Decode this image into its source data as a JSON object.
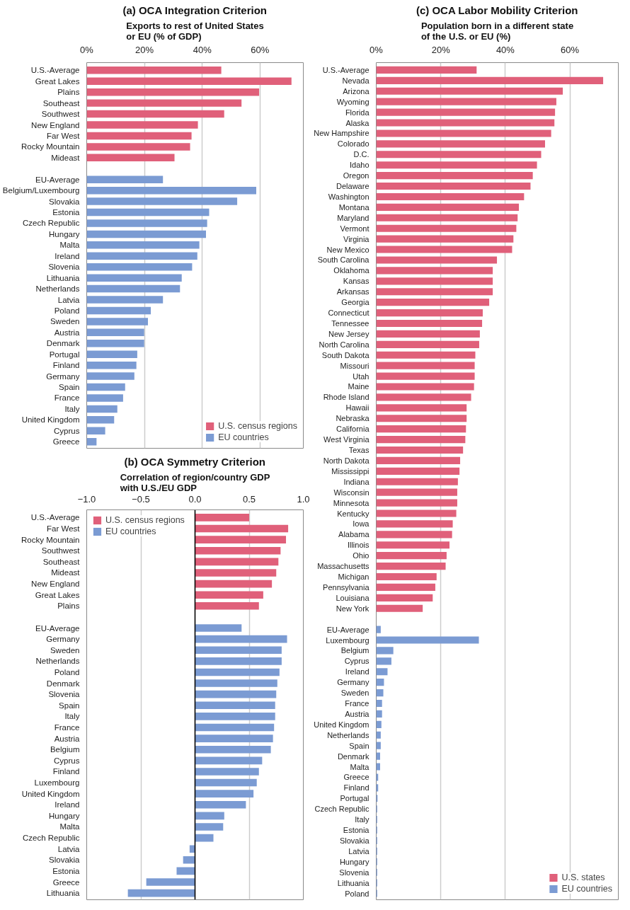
{
  "chart_data": [
    {
      "type": "bar",
      "orientation": "horizontal",
      "title": "(a) OCA Integration Criterion",
      "subtitle": "Exports to rest of United States\nor EU (% of GDP)",
      "categories": [
        "U.S.-Average",
        "Great Lakes",
        "Plains",
        "Southeast",
        "Southwest",
        "New England",
        "Far West",
        "Rocky Mountain",
        "Mideast",
        null,
        "EU-Average",
        "Belgium/Luxembourg",
        "Slovakia",
        "Estonia",
        "Czech Republic",
        "Hungary",
        "Malta",
        "Ireland",
        "Slovenia",
        "Lithuania",
        "Netherlands",
        "Latvia",
        "Poland",
        "Sweden",
        "Austria",
        "Denmark",
        "Portugal",
        "Finland",
        "Germany",
        "Spain",
        "France",
        "Italy",
        "United Kingdom",
        "Cyprus",
        "Greece"
      ],
      "series": [
        {
          "name": "U.S. census regions",
          "color": "#e0607a",
          "values": [
            46.6,
            70.9,
            59.7,
            53.6,
            47.6,
            38.5,
            36.3,
            35.8,
            30.4,
            null,
            null,
            null,
            null,
            null,
            null,
            null,
            null,
            null,
            null,
            null,
            null,
            null,
            null,
            null,
            null,
            null,
            null,
            null,
            null,
            null,
            null,
            null,
            null,
            null,
            null
          ]
        },
        {
          "name": "EU countries",
          "color": "#7b9bd3",
          "values": [
            null,
            null,
            null,
            null,
            null,
            null,
            null,
            null,
            null,
            null,
            26.4,
            58.7,
            52.1,
            42.4,
            41.7,
            41.3,
            39.0,
            38.3,
            36.5,
            32.9,
            32.3,
            26.4,
            22.2,
            21.2,
            19.9,
            19.9,
            17.5,
            17.2,
            16.5,
            13.3,
            12.6,
            10.6,
            9.5,
            6.4,
            3.4
          ]
        }
      ],
      "xlim": [
        0,
        75
      ],
      "xticks": [
        {
          "value": 0,
          "label": "0%"
        },
        {
          "value": 20,
          "label": "20%"
        },
        {
          "value": 40,
          "label": "40%"
        },
        {
          "value": 60,
          "label": "60%"
        }
      ],
      "grid": "x",
      "legend": "bottom right"
    },
    {
      "type": "bar",
      "orientation": "horizontal",
      "title": "(b) OCA Symmetry Criterion",
      "subtitle": "Correlation of region/country GDP\nwith U.S./EU GDP",
      "categories": [
        "U.S.-Average",
        "Far West",
        "Rocky Mountain",
        "Southwest",
        "Southeast",
        "Mideast",
        "New England",
        "Great Lakes",
        "Plains",
        null,
        "EU-Average",
        "Germany",
        "Sweden",
        "Netherlands",
        "Poland",
        "Denmark",
        "Slovenia",
        "Spain",
        "Italy",
        "France",
        "Austria",
        "Belgium",
        "Cyprus",
        "Finland",
        "Luxembourg",
        "United Kingdom",
        "Ireland",
        "Hungary",
        "Malta",
        "Czech Republic",
        "Latvia",
        "Slovakia",
        "Estonia",
        "Greece",
        "Lithuania"
      ],
      "series": [
        {
          "name": "U.S. census regions",
          "color": "#e0607a",
          "values": [
            0.5,
            0.86,
            0.84,
            0.79,
            0.77,
            0.75,
            0.71,
            0.63,
            0.59,
            null,
            null,
            null,
            null,
            null,
            null,
            null,
            null,
            null,
            null,
            null,
            null,
            null,
            null,
            null,
            null,
            null,
            null,
            null,
            null,
            null,
            null,
            null,
            null,
            null,
            null
          ]
        },
        {
          "name": "EU countries",
          "color": "#7b9bd3",
          "values": [
            null,
            null,
            null,
            null,
            null,
            null,
            null,
            null,
            null,
            null,
            0.43,
            0.85,
            0.8,
            0.8,
            0.78,
            0.76,
            0.75,
            0.74,
            0.74,
            0.73,
            0.72,
            0.7,
            0.62,
            0.59,
            0.57,
            0.54,
            0.47,
            0.27,
            0.26,
            0.17,
            -0.05,
            -0.11,
            -0.17,
            -0.45,
            -0.62
          ]
        }
      ],
      "xlim": [
        -1,
        1
      ],
      "xticks": [
        {
          "value": -1,
          "label": "−1.0"
        },
        {
          "value": -0.5,
          "label": "−0.5"
        },
        {
          "value": 0,
          "label": "0.0"
        },
        {
          "value": 0.5,
          "label": "0.5"
        },
        {
          "value": 1,
          "label": "1.0"
        }
      ],
      "ref_lines": [
        {
          "axis": "x",
          "value": 0,
          "color": "#000000"
        }
      ],
      "grid": "x",
      "legend": "top left"
    },
    {
      "type": "bar",
      "orientation": "horizontal",
      "title": "(c) OCA Labor Mobility Criterion",
      "subtitle": "Population born in a different state\nof the U.S. or EU (%)",
      "categories": [
        "U.S.-Average",
        "Nevada",
        "Arizona",
        "Wyoming",
        "Florida",
        "Alaska",
        "New Hampshire",
        "Colorado",
        "D.C.",
        "Idaho",
        "Oregon",
        "Delaware",
        "Washington",
        "Montana",
        "Maryland",
        "Vermont",
        "Virginia",
        "New Mexico",
        "South Carolina",
        "Oklahoma",
        "Kansas",
        "Arkansas",
        "Georgia",
        "Connecticut",
        "Tennessee",
        "New Jersey",
        "North Carolina",
        "South Dakota",
        "Missouri",
        "Utah",
        "Maine",
        "Rhode Island",
        "Hawaii",
        "Nebraska",
        "California",
        "West Virginia",
        "Texas",
        "North Dakota",
        "Mississippi",
        "Indiana",
        "Wisconsin",
        "Minnesota",
        "Kentucky",
        "Iowa",
        "Alabama",
        "Illinois",
        "Ohio",
        "Massachusetts",
        "Michigan",
        "Pennsylvania",
        "Louisiana",
        "New York",
        null,
        "EU-Average",
        "Luxembourg",
        "Belgium",
        "Cyprus",
        "Ireland",
        "Germany",
        "Sweden",
        "France",
        "Austria",
        "United Kingdom",
        "Netherlands",
        "Spain",
        "Denmark",
        "Malta",
        "Greece",
        "Finland",
        "Portugal",
        "Czech Republic",
        "Italy",
        "Estonia",
        "Slovakia",
        "Latvia",
        "Hungary",
        "Slovenia",
        "Lithuania",
        "Poland"
      ],
      "series": [
        {
          "name": "U.S. states",
          "color": "#e0607a",
          "values": [
            31.1,
            70.3,
            57.8,
            55.8,
            55.4,
            55.2,
            54.2,
            52.3,
            51.1,
            49.8,
            48.5,
            47.8,
            45.8,
            44.2,
            43.8,
            43.4,
            42.5,
            42.1,
            37.4,
            36.1,
            36.1,
            36.1,
            35.0,
            33.0,
            32.8,
            32.1,
            31.9,
            30.7,
            30.5,
            30.5,
            30.3,
            29.4,
            28.0,
            28.0,
            27.8,
            27.6,
            26.9,
            26.0,
            25.8,
            25.3,
            25.1,
            25.1,
            24.8,
            23.7,
            23.5,
            22.7,
            21.8,
            21.5,
            18.7,
            18.3,
            17.5,
            14.4,
            null,
            null,
            null,
            null,
            null,
            null,
            null,
            null,
            null,
            null,
            null,
            null,
            null,
            null,
            null,
            null,
            null,
            null,
            null,
            null,
            null,
            null,
            null,
            null,
            null,
            null,
            null
          ]
        },
        {
          "name": "EU countries",
          "color": "#7b9bd3",
          "values": [
            null,
            null,
            null,
            null,
            null,
            null,
            null,
            null,
            null,
            null,
            null,
            null,
            null,
            null,
            null,
            null,
            null,
            null,
            null,
            null,
            null,
            null,
            null,
            null,
            null,
            null,
            null,
            null,
            null,
            null,
            null,
            null,
            null,
            null,
            null,
            null,
            null,
            null,
            null,
            null,
            null,
            null,
            null,
            null,
            null,
            null,
            null,
            null,
            null,
            null,
            null,
            null,
            null,
            1.4,
            31.8,
            5.3,
            4.7,
            3.5,
            2.4,
            2.2,
            1.8,
            1.8,
            1.6,
            1.4,
            1.4,
            1.2,
            1.2,
            0.6,
            0.6,
            0.4,
            0.3,
            0.3,
            0.3,
            0.3,
            0.3,
            0.3,
            0.3,
            0.3,
            0.3
          ]
        }
      ],
      "xlim": [
        0,
        75
      ],
      "xticks": [
        {
          "value": 0,
          "label": "0%"
        },
        {
          "value": 20,
          "label": "20%"
        },
        {
          "value": 40,
          "label": "40%"
        },
        {
          "value": 60,
          "label": "60%"
        }
      ],
      "grid": "x",
      "legend": "bottom right"
    }
  ]
}
